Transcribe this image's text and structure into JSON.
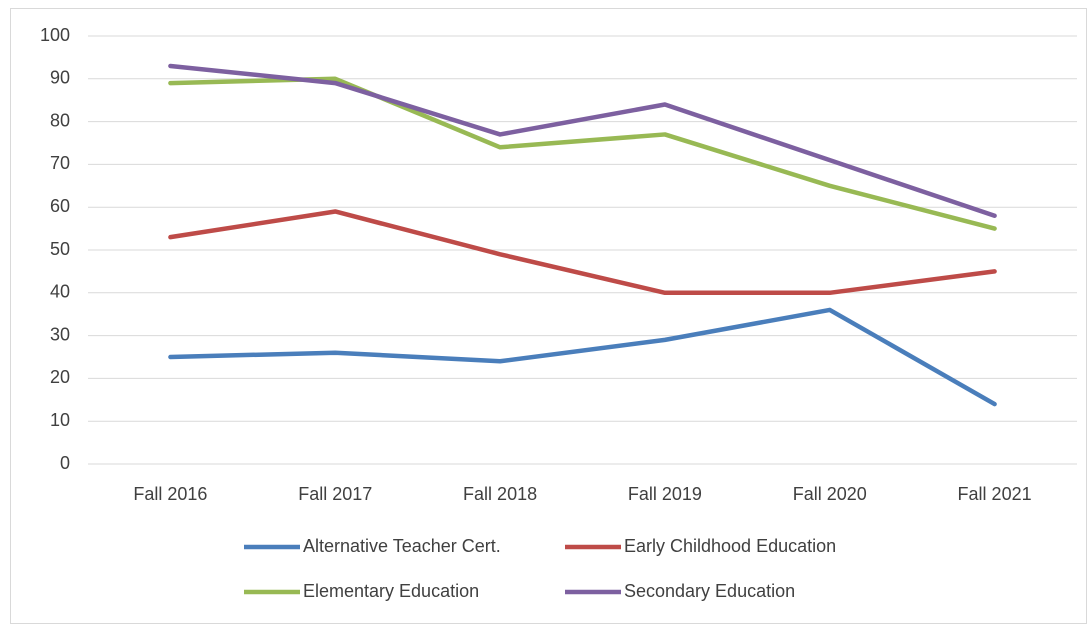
{
  "chart_data": {
    "type": "line",
    "categories": [
      "Fall 2016",
      "Fall 2017",
      "Fall 2018",
      "Fall 2019",
      "Fall 2020",
      "Fall 2021"
    ],
    "series": [
      {
        "name": "Alternative Teacher Cert.",
        "color": "#4a7ebb",
        "values": [
          25,
          26,
          24,
          29,
          36,
          14
        ]
      },
      {
        "name": "Early Childhood Education",
        "color": "#be4b48",
        "values": [
          53,
          59,
          49,
          40,
          40,
          45
        ]
      },
      {
        "name": "Elementary Education",
        "color": "#98b954",
        "values": [
          89,
          90,
          74,
          77,
          65,
          55
        ]
      },
      {
        "name": "Secondary Education",
        "color": "#7d60a0",
        "values": [
          93,
          89,
          77,
          84,
          71,
          58
        ]
      }
    ],
    "ylim": [
      0,
      100
    ],
    "yticks": [
      0,
      10,
      20,
      30,
      40,
      50,
      60,
      70,
      80,
      90,
      100
    ],
    "grid": true,
    "legend": "bottom"
  }
}
